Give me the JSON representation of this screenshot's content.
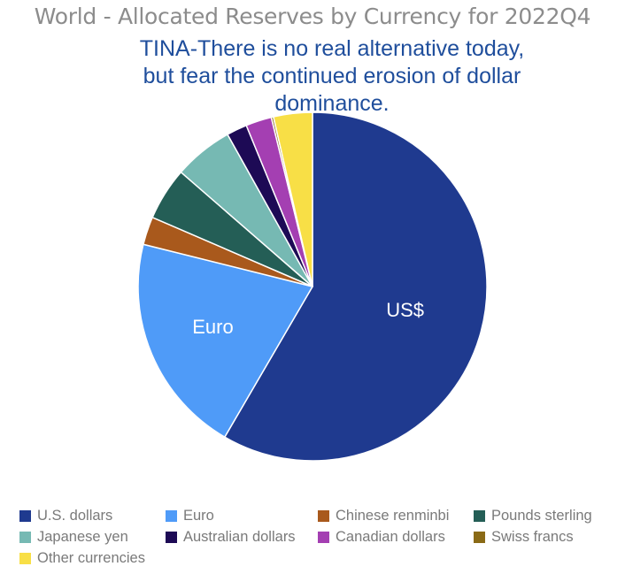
{
  "chart_data": {
    "type": "pie",
    "title": "World - Allocated Reserves by Currency for 2022Q4",
    "annotation_lines": [
      "TINA-There is no real alternative today,",
      "but fear the continued erosion of dollar",
      "dominance."
    ],
    "start_angle_deg": 0,
    "direction": "clockwise",
    "legend_position": "bottom",
    "slices": [
      {
        "name": "U.S. dollars",
        "value": 58.4,
        "color": "#1f3a8f",
        "label": "US$"
      },
      {
        "name": "Euro",
        "value": 20.5,
        "color": "#4f9bf8",
        "label": "Euro"
      },
      {
        "name": "Chinese renminbi",
        "value": 2.6,
        "color": "#a9591c",
        "label": ""
      },
      {
        "name": "Pounds sterling",
        "value": 4.9,
        "color": "#245e56",
        "label": ""
      },
      {
        "name": "Japanese yen",
        "value": 5.5,
        "color": "#76b9b3",
        "label": ""
      },
      {
        "name": "Australian dollars",
        "value": 1.9,
        "color": "#1d0a55",
        "label": ""
      },
      {
        "name": "Canadian dollars",
        "value": 2.4,
        "color": "#a43fb2",
        "label": ""
      },
      {
        "name": "Swiss francs",
        "value": 0.2,
        "color": "#8a6a16",
        "label": ""
      },
      {
        "name": "Other currencies",
        "value": 3.6,
        "color": "#f8df46",
        "label": ""
      }
    ]
  }
}
